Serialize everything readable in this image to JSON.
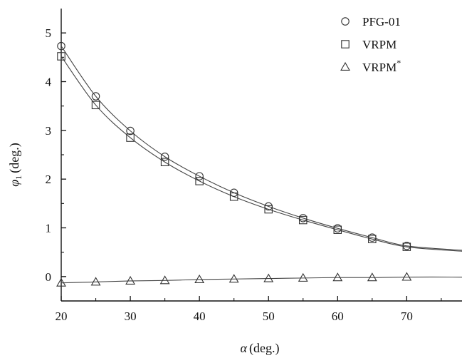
{
  "chart_data": {
    "type": "line",
    "title": "",
    "xlabel": "α (deg.)",
    "xlabel_symbol": "α",
    "xlabel_unit": "(deg.)",
    "ylabel": "φ₁ (deg.)",
    "ylabel_symbol": "φ",
    "ylabel_sub": "1",
    "ylabel_unit": "(deg.)",
    "xlim": [
      20,
      78
    ],
    "ylim": [
      -0.5,
      5.5
    ],
    "xticks": [
      20,
      30,
      40,
      50,
      60,
      70
    ],
    "xtick_labels": [
      "20",
      "30",
      "40",
      "50",
      "60",
      "70"
    ],
    "yticks": [
      0,
      1,
      2,
      3,
      4,
      5
    ],
    "ytick_labels": [
      "0",
      "1",
      "2",
      "3",
      "4",
      "5"
    ],
    "grid": false,
    "legend_position": "top-right",
    "x": [
      20,
      25,
      30,
      35,
      40,
      45,
      50,
      55,
      60,
      65,
      70
    ],
    "series": [
      {
        "name": "PFG-01",
        "marker": "circle",
        "legend_label": "PFG-01",
        "legend_sup": "",
        "values": [
          4.73,
          3.7,
          2.99,
          2.46,
          2.06,
          1.72,
          1.44,
          1.2,
          0.99,
          0.8,
          0.63
        ],
        "curve_end": [
          78,
          0.54
        ]
      },
      {
        "name": "VRPM",
        "marker": "square",
        "legend_label": "VRPM",
        "legend_sup": "",
        "values": [
          4.52,
          3.52,
          2.85,
          2.35,
          1.96,
          1.64,
          1.38,
          1.16,
          0.96,
          0.77,
          0.61
        ],
        "curve_end": [
          78,
          0.52
        ]
      },
      {
        "name": "VRPM*",
        "marker": "triangle",
        "legend_label": "VRPM",
        "legend_sup": "*",
        "values": [
          -0.13,
          -0.11,
          -0.09,
          -0.08,
          -0.06,
          -0.05,
          -0.04,
          -0.03,
          -0.02,
          -0.02,
          -0.01
        ],
        "curve_end": [
          78,
          -0.01
        ]
      }
    ]
  }
}
